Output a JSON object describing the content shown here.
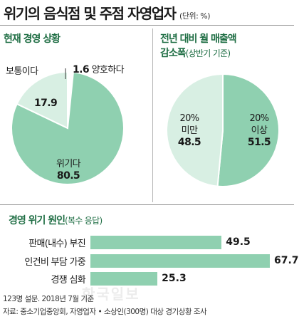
{
  "header": {
    "title": "위기의 음식점 및 주점 자영업자",
    "unit": "(단위: %)"
  },
  "colors": {
    "accent": "#1f6e44",
    "slice_main": "#8fd0b0",
    "slice_light": "#d8efe3"
  },
  "chart_data": [
    {
      "type": "pie",
      "title": "현재 경영 상황",
      "slices": [
        {
          "label": "위기다",
          "value": 80.5,
          "color": "#8fd0b0"
        },
        {
          "label": "보통이다",
          "value": 17.9,
          "color": "#d8efe3"
        },
        {
          "label": "양호하다",
          "value": 1.6,
          "color": "#ffffff"
        }
      ]
    },
    {
      "type": "pie",
      "title_line1": "전년 대비 월 매출액",
      "title_line2": "감소폭",
      "subtitle": "(상반기 기준)",
      "slices": [
        {
          "label": "20% 이상",
          "label_line1": "20%",
          "label_line2": "이상",
          "value": 51.5,
          "color": "#8fd0b0"
        },
        {
          "label": "20% 미만",
          "label_line1": "20%",
          "label_line2": "미만",
          "value": 48.5,
          "color": "#d8efe3"
        }
      ]
    },
    {
      "type": "bar",
      "orientation": "horizontal",
      "title": "경영 위기 원인",
      "subtitle": "(복수 응답)",
      "categories": [
        "판매(내수) 부진",
        "인건비 부담 가중",
        "경쟁 심화"
      ],
      "values": [
        49.5,
        67.7,
        25.3
      ],
      "xlim": [
        0,
        67.7
      ],
      "color": "#8fd0b0"
    }
  ],
  "footer": {
    "line1": "123명 설문. 2018년 7월 기준",
    "line2": "자료: 중소기업중앙회, 자영업자 • 소상인(300명) 대상 경기상황 조사"
  },
  "watermark": "한국일보"
}
